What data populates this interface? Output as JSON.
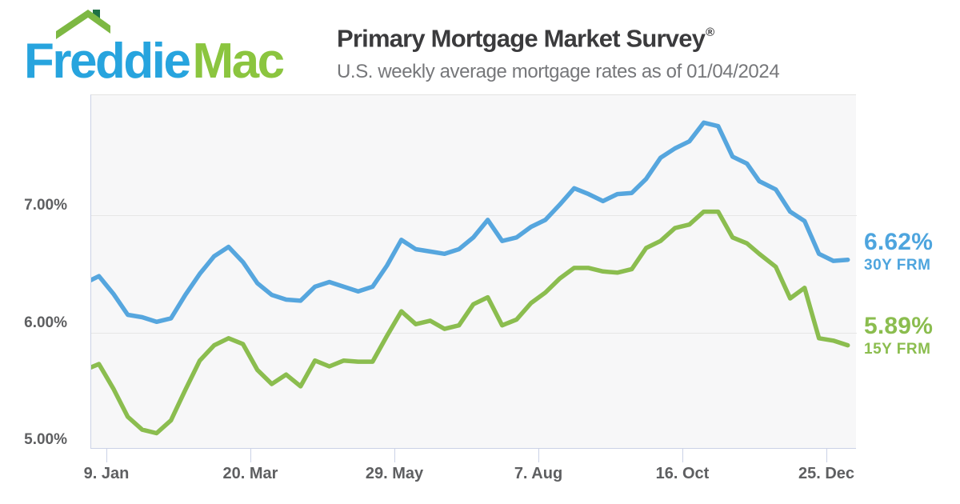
{
  "header": {
    "logo": {
      "freddie": "Freddie",
      "mac": "Mac",
      "freddie_color": "#27a4de",
      "mac_color": "#8bc53f",
      "roof_color": "#7db843",
      "chimney_color": "#1e7145"
    },
    "title": "Primary Mortgage Market Survey",
    "title_registered": "®",
    "subtitle": "U.S. weekly average mortgage rates as of 01/04/2024"
  },
  "chart_data": {
    "type": "line",
    "title": "Primary Mortgage Market Survey",
    "xlabel": "",
    "ylabel": "",
    "grid": true,
    "ylim": [
      5.0,
      8.02
    ],
    "y_ticks": [
      {
        "label": "7.00%",
        "value": 7.0
      },
      {
        "label": "6.00%",
        "value": 6.0
      },
      {
        "label": "5.00%",
        "value": 5.0
      }
    ],
    "y_gridline_values": [
      7.0,
      6.0
    ],
    "x_ticks": [
      {
        "label": "9. Jan",
        "day": 11
      },
      {
        "label": "20. Mar",
        "day": 81
      },
      {
        "label": "29. May",
        "day": 151
      },
      {
        "label": "7. Aug",
        "day": 221
      },
      {
        "label": "16. Oct",
        "day": 291
      },
      {
        "label": "25. Dec",
        "day": 361
      }
    ],
    "x_days_from_start": [
      0,
      7,
      14,
      21,
      28,
      35,
      42,
      49,
      56,
      63,
      70,
      77,
      84,
      91,
      98,
      105,
      112,
      119,
      126,
      133,
      140,
      147,
      154,
      161,
      168,
      175,
      182,
      189,
      196,
      203,
      210,
      217,
      224,
      231,
      238,
      245,
      252,
      259,
      266,
      273,
      280,
      287,
      294,
      301,
      308,
      315,
      322,
      328,
      336,
      343,
      350,
      357,
      364,
      371
    ],
    "series": [
      {
        "name": "30Y FRM",
        "color": "#56a6de",
        "current_value": "6.62%",
        "values": [
          6.42,
          6.48,
          6.33,
          6.15,
          6.13,
          6.09,
          6.12,
          6.32,
          6.5,
          6.65,
          6.73,
          6.6,
          6.42,
          6.32,
          6.28,
          6.27,
          6.39,
          6.43,
          6.39,
          6.35,
          6.39,
          6.57,
          6.79,
          6.71,
          6.69,
          6.67,
          6.71,
          6.81,
          6.96,
          6.78,
          6.81,
          6.9,
          6.96,
          7.09,
          7.23,
          7.18,
          7.12,
          7.18,
          7.19,
          7.31,
          7.49,
          7.57,
          7.63,
          7.79,
          7.76,
          7.5,
          7.44,
          7.29,
          7.22,
          7.03,
          6.95,
          6.67,
          6.61,
          6.62
        ]
      },
      {
        "name": "15Y FRM",
        "color": "#8bbd4f",
        "current_value": "5.89%",
        "values": [
          5.68,
          5.73,
          5.52,
          5.28,
          5.17,
          5.14,
          5.25,
          5.51,
          5.76,
          5.89,
          5.95,
          5.9,
          5.68,
          5.56,
          5.64,
          5.54,
          5.76,
          5.71,
          5.76,
          5.75,
          5.75,
          5.97,
          6.18,
          6.07,
          6.1,
          6.03,
          6.06,
          6.24,
          6.3,
          6.06,
          6.11,
          6.25,
          6.34,
          6.46,
          6.55,
          6.55,
          6.52,
          6.51,
          6.54,
          6.72,
          6.78,
          6.89,
          6.92,
          7.03,
          7.03,
          6.81,
          6.76,
          6.67,
          6.56,
          6.29,
          6.38,
          5.95,
          5.93,
          5.89
        ]
      }
    ],
    "annotations": [
      {
        "value": "6.62%",
        "label": "30Y FRM",
        "color": "#4ea5de"
      },
      {
        "value": "5.89%",
        "label": "15Y FRM",
        "color": "#8bbd4f"
      }
    ],
    "legend_position": "right-of-line-ends"
  }
}
